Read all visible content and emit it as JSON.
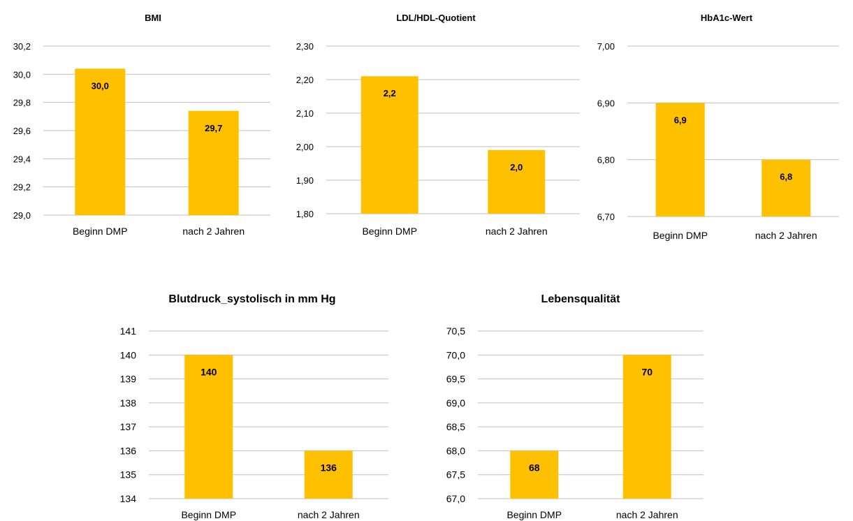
{
  "chart_data": [
    {
      "type": "bar",
      "title": "BMI",
      "categories": [
        "Beginn DMP",
        "nach 2 Jahren"
      ],
      "values": [
        30.04,
        29.74
      ],
      "data_labels": [
        "30,0",
        "29,7"
      ],
      "ylim": [
        29.0,
        30.2
      ],
      "yticks": [
        "29,0",
        "29,2",
        "29,4",
        "29,6",
        "29,8",
        "30,0",
        "30,2"
      ],
      "grid": true,
      "color": "#FFC000"
    },
    {
      "type": "bar",
      "title": "LDL/HDL-Quotient",
      "categories": [
        "Beginn DMP",
        "nach 2 Jahren"
      ],
      "values": [
        2.21,
        1.99
      ],
      "data_labels": [
        "2,2",
        "2,0"
      ],
      "ylim": [
        1.8,
        2.3
      ],
      "yticks": [
        "1,80",
        "1,90",
        "2,00",
        "2,10",
        "2,20",
        "2,30"
      ],
      "grid": true,
      "color": "#FFC000"
    },
    {
      "type": "bar",
      "title": "HbA1c-Wert",
      "categories": [
        "Beginn DMP",
        "nach 2 Jahren"
      ],
      "values": [
        6.9,
        6.8
      ],
      "data_labels": [
        "6,9",
        "6,8"
      ],
      "ylim": [
        6.7,
        7.0
      ],
      "yticks": [
        "6,70",
        "6,80",
        "6,90",
        "7,00"
      ],
      "grid": true,
      "color": "#FFC000"
    },
    {
      "type": "bar",
      "title": "Blutdruck_systolisch in mm Hg",
      "categories": [
        "Beginn DMP",
        "nach 2 Jahren"
      ],
      "values": [
        140,
        136
      ],
      "data_labels": [
        "140",
        "136"
      ],
      "ylim": [
        134,
        141
      ],
      "yticks": [
        "134",
        "135",
        "136",
        "137",
        "138",
        "139",
        "140",
        "141"
      ],
      "grid": true,
      "color": "#FFC000"
    },
    {
      "type": "bar",
      "title": "Lebensqualität",
      "categories": [
        "Beginn DMP",
        "nach 2 Jahren"
      ],
      "values": [
        68,
        70
      ],
      "data_labels": [
        "68",
        "70"
      ],
      "ylim": [
        67.0,
        70.5
      ],
      "yticks": [
        "67,0",
        "67,5",
        "68,0",
        "68,5",
        "69,0",
        "69,5",
        "70,0",
        "70,5"
      ],
      "grid": true,
      "color": "#FFC000"
    }
  ]
}
